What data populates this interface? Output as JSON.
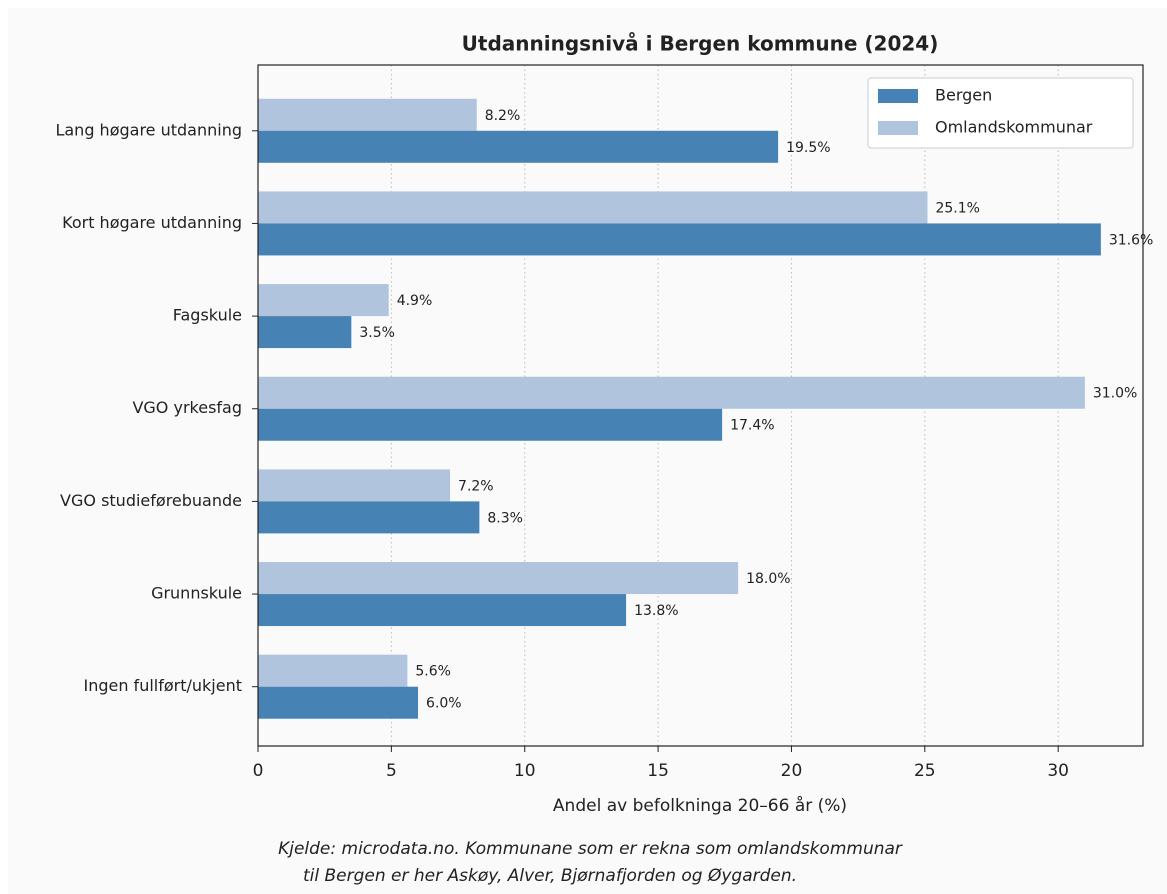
{
  "chart_data": {
    "type": "barh",
    "title": "Utdanningsnivå i Bergen kommune (2024)",
    "xlabel": "Andel av befolkninga 20–66 år (%)",
    "source": [
      "Kjelde: microdata.no. Kommunane som er rekna som omlandskommunar",
      "til Bergen er her Askøy, Alver, Bjørnafjorden og Øygarden."
    ],
    "categories": [
      "Lang høgare utdanning",
      "Kort høgare utdanning",
      "Fagskule",
      "VGO yrkesfag",
      "VGO studieførebuande",
      "Grunnskule",
      "Ingen fullført/ukjent"
    ],
    "series": [
      {
        "name": "Bergen",
        "color": "#4682b4",
        "values": [
          19.5,
          31.6,
          3.5,
          17.4,
          8.3,
          13.8,
          6.0
        ],
        "value_labels": [
          "19.5%",
          "31.6%",
          "3.5%",
          "17.4%",
          "8.3%",
          "13.8%",
          "6.0%"
        ]
      },
      {
        "name": "Omlandskommunar",
        "color": "#b0c4de",
        "values": [
          8.2,
          25.1,
          4.9,
          31.0,
          7.2,
          18.0,
          5.6
        ],
        "value_labels": [
          "8.2%",
          "25.1%",
          "4.9%",
          "31.0%",
          "7.2%",
          "18.0%",
          "5.6%"
        ]
      }
    ],
    "xlim": [
      0,
      33.18
    ],
    "xticks": [
      0,
      5,
      10,
      15,
      20,
      25,
      30
    ],
    "grid": true,
    "legend": "upper right"
  }
}
